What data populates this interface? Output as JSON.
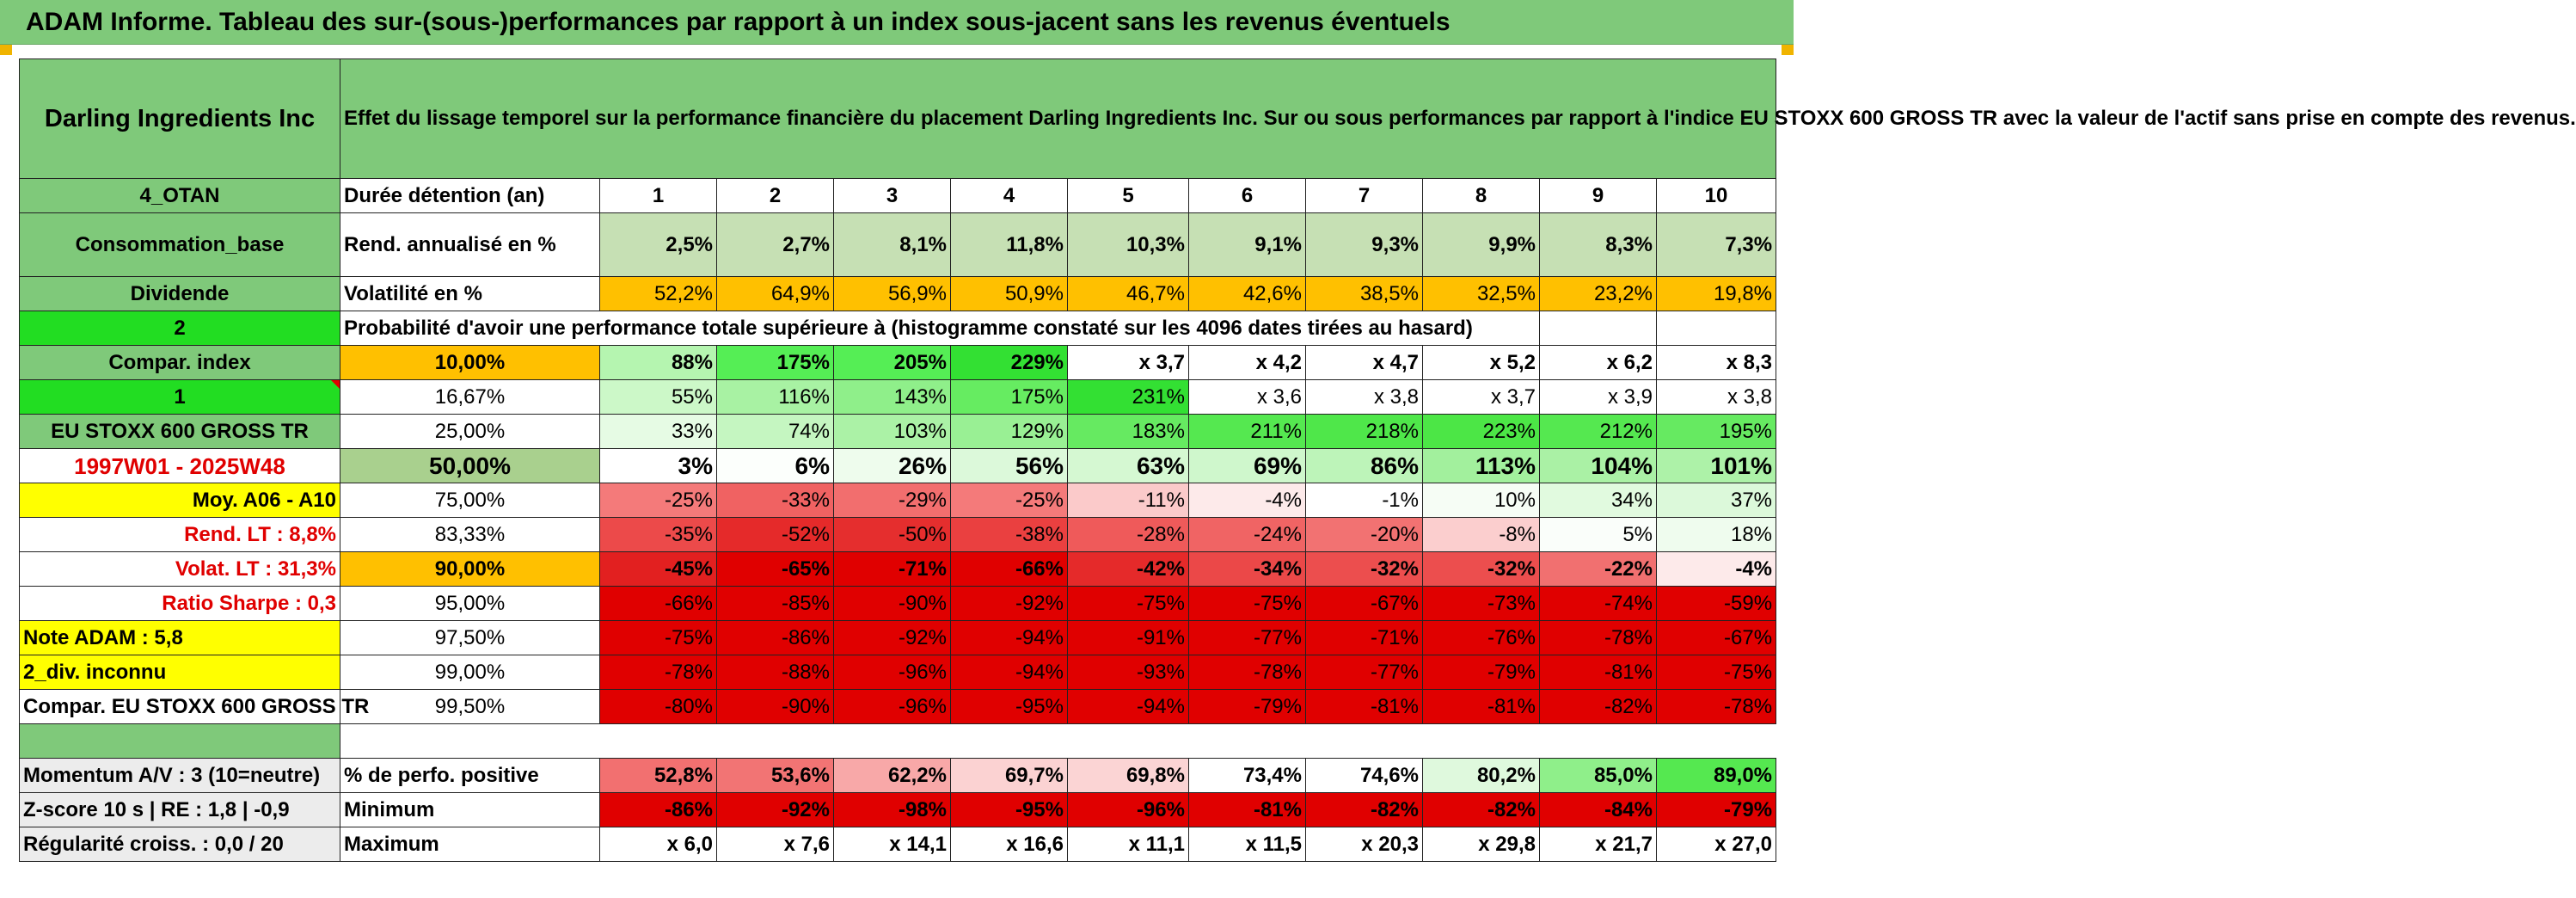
{
  "banner_title": "ADAM Informe. Tableau des sur-(sous-)performances par rapport à un index sous-jacent sans les revenus éventuels",
  "company": "Darling Ingredients Inc",
  "description": "Effet du lissage temporel sur la performance financière du placement Darling Ingredients Inc. Sur ou sous performances par rapport à l'indice EU STOXX 600 GROSS TR avec la valeur de l'actif sans prise en compte des revenus.",
  "header": {
    "side": "4_OTAN",
    "label": "Durée détention (an)",
    "years": [
      "1",
      "2",
      "3",
      "4",
      "5",
      "6",
      "7",
      "8",
      "9",
      "10"
    ]
  },
  "rend": {
    "side": "Consommation_base",
    "label": "Rend. annualisé en %",
    "values": [
      "2,5%",
      "2,7%",
      "8,1%",
      "11,8%",
      "10,3%",
      "9,1%",
      "9,3%",
      "9,9%",
      "8,3%",
      "7,3%"
    ]
  },
  "vol": {
    "side": "Dividende",
    "label": "Volatilité en %",
    "values": [
      "52,2%",
      "64,9%",
      "56,9%",
      "50,9%",
      "46,7%",
      "42,6%",
      "38,5%",
      "32,5%",
      "23,2%",
      "19,8%"
    ]
  },
  "prob": {
    "side": "2",
    "text": "Probabilité d'avoir une performance totale supérieure à (histogramme constaté sur les 4096 dates tirées au hasard)"
  },
  "rows": [
    {
      "side": "Compar. index",
      "pct": "10,00%",
      "values": [
        "88%",
        "175%",
        "205%",
        "229%",
        "x 3,7",
        "x 4,2",
        "x 4,7",
        "x 5,2",
        "x 6,2",
        "x 8,3"
      ],
      "colors": [
        "#b5f5b0",
        "#55ee55",
        "#55ee55",
        "#33e033",
        "#ffffff",
        "#ffffff",
        "#ffffff",
        "#ffffff",
        "#ffffff",
        "#ffffff"
      ]
    },
    {
      "side": "1",
      "pct": "16,67%",
      "values": [
        "55%",
        "116%",
        "143%",
        "175%",
        "231%",
        "x 3,6",
        "x 3,8",
        "x 3,7",
        "x 3,9",
        "x 3,8"
      ],
      "colors": [
        "#ccf8c8",
        "#a8f2a3",
        "#8fef8a",
        "#66ec61",
        "#33e033",
        "#ffffff",
        "#ffffff",
        "#ffffff",
        "#ffffff",
        "#ffffff"
      ]
    },
    {
      "side": "EU STOXX 600 GROSS TR",
      "pct": "25,00%",
      "values": [
        "33%",
        "74%",
        "103%",
        "129%",
        "183%",
        "211%",
        "218%",
        "223%",
        "212%",
        "195%"
      ],
      "colors": [
        "#e6fbe4",
        "#c5f6c1",
        "#abf2a6",
        "#99f094",
        "#66ea61",
        "#55e850",
        "#4fe74a",
        "#4ce646",
        "#55e850",
        "#66ea61"
      ]
    },
    {
      "side": "1997W01 - 2025W48",
      "pct": "50,00%",
      "values": [
        "3%",
        "6%",
        "26%",
        "56%",
        "63%",
        "69%",
        "86%",
        "113%",
        "104%",
        "101%"
      ],
      "colors": [
        "#ffffff",
        "#fcfffc",
        "#eefced",
        "#dcf9da",
        "#d5f8d2",
        "#cff7cc",
        "#bdf4b9",
        "#a2f09d",
        "#aaf1a5",
        "#adf2a8"
      ]
    },
    {
      "side": "Moy. A06 - A10",
      "pct": "75,00%",
      "values": [
        "-25%",
        "-33%",
        "-29%",
        "-25%",
        "-11%",
        "-4%",
        "-1%",
        "10%",
        "34%",
        "37%"
      ],
      "colors": [
        "#f47a7a",
        "#f06262",
        "#f26e6e",
        "#f47a7a",
        "#fbcaca",
        "#fdeaea",
        "#ffffff",
        "#f6fdf5",
        "#e1fadf",
        "#dcf9da"
      ]
    },
    {
      "side": "Rend. LT :   8,8%",
      "pct": "83,33%",
      "values": [
        "-35%",
        "-52%",
        "-50%",
        "-38%",
        "-28%",
        "-24%",
        "-20%",
        "-8%",
        "5%",
        "18%"
      ],
      "colors": [
        "#ec4a4a",
        "#e52a2a",
        "#e52e2e",
        "#ea4040",
        "#ef5a5a",
        "#f06464",
        "#f27272",
        "#fbcece",
        "#fafefa",
        "#effcee"
      ]
    },
    {
      "side": "Volat. LT :   31,3%",
      "pct": "90,00%",
      "values": [
        "-45%",
        "-65%",
        "-71%",
        "-66%",
        "-42%",
        "-34%",
        "-32%",
        "-32%",
        "-22%",
        "-4%"
      ],
      "colors": [
        "#e22020",
        "#e00000",
        "#e00000",
        "#e00000",
        "#e52a2a",
        "#eb4848",
        "#ec4e4e",
        "#ec4e4e",
        "#f17070",
        "#fdeaea"
      ]
    },
    {
      "side": "Ratio Sharpe :    0,3",
      "pct": "95,00%",
      "values": [
        "-66%",
        "-85%",
        "-90%",
        "-92%",
        "-75%",
        "-75%",
        "-67%",
        "-73%",
        "-74%",
        "-59%"
      ],
      "colors": [
        "#e00000",
        "#e00000",
        "#e00000",
        "#e00000",
        "#e00000",
        "#e00000",
        "#e00000",
        "#e00000",
        "#e00000",
        "#e00000"
      ]
    },
    {
      "side": "Note ADAM : 5,8",
      "pct": "97,50%",
      "values": [
        "-75%",
        "-86%",
        "-92%",
        "-94%",
        "-91%",
        "-77%",
        "-71%",
        "-76%",
        "-78%",
        "-67%"
      ],
      "colors": [
        "#e00000",
        "#e00000",
        "#e00000",
        "#e00000",
        "#e00000",
        "#e00000",
        "#e00000",
        "#e00000",
        "#e00000",
        "#e00000"
      ]
    },
    {
      "side": "2_div. inconnu",
      "pct": "99,00%",
      "values": [
        "-78%",
        "-88%",
        "-96%",
        "-94%",
        "-93%",
        "-78%",
        "-77%",
        "-79%",
        "-81%",
        "-75%"
      ],
      "colors": [
        "#e00000",
        "#e00000",
        "#e00000",
        "#e00000",
        "#e00000",
        "#e00000",
        "#e00000",
        "#e00000",
        "#e00000",
        "#e00000"
      ]
    },
    {
      "side": "Compar. EU STOXX 600 GROSS TR",
      "pct": "99,50%",
      "values": [
        "-80%",
        "-90%",
        "-96%",
        "-95%",
        "-94%",
        "-79%",
        "-81%",
        "-81%",
        "-82%",
        "-78%"
      ],
      "colors": [
        "#e00000",
        "#e00000",
        "#e00000",
        "#e00000",
        "#e00000",
        "#e00000",
        "#e00000",
        "#e00000",
        "#e00000",
        "#e00000"
      ]
    }
  ],
  "stats": [
    {
      "side": "Momentum A/V : 3 (10=neutre)",
      "label": "% de perfo. positive",
      "values": [
        "52,8%",
        "53,6%",
        "62,2%",
        "69,7%",
        "69,8%",
        "73,4%",
        "74,6%",
        "80,2%",
        "85,0%",
        "89,0%"
      ],
      "colors": [
        "#f27070",
        "#f27474",
        "#f8a8a8",
        "#fbd2d2",
        "#fbd4d4",
        "#ffffff",
        "#ffffff",
        "#dff9dd",
        "#8fef8a",
        "#55e850"
      ]
    },
    {
      "side": "Z-score 10 s | RE : 1,8 | -0,9",
      "label": "Minimum",
      "values": [
        "-86%",
        "-92%",
        "-98%",
        "-95%",
        "-96%",
        "-81%",
        "-82%",
        "-82%",
        "-84%",
        "-79%"
      ],
      "colors": [
        "#e00000",
        "#e00000",
        "#e00000",
        "#e00000",
        "#e00000",
        "#e00000",
        "#e00000",
        "#e00000",
        "#e00000",
        "#e00000"
      ]
    },
    {
      "side": "Régularité croiss. : 0,0 / 20",
      "label": "Maximum",
      "values": [
        "x 6,0",
        "x 7,6",
        "x 14,1",
        "x 16,6",
        "x 11,1",
        "x 11,5",
        "x 20,3",
        "x 29,8",
        "x 21,7",
        "x 27,0"
      ],
      "colors": [
        "#ffffff",
        "#ffffff",
        "#ffffff",
        "#ffffff",
        "#ffffff",
        "#ffffff",
        "#ffffff",
        "#ffffff",
        "#ffffff",
        "#ffffff"
      ]
    }
  ],
  "palette": {
    "green_header": "#7fc97a",
    "bright_green": "#22dd22",
    "yellow": "#ffff00",
    "orange": "#ffc000",
    "light_green": "#c6e0b4",
    "red": "#e00000"
  }
}
